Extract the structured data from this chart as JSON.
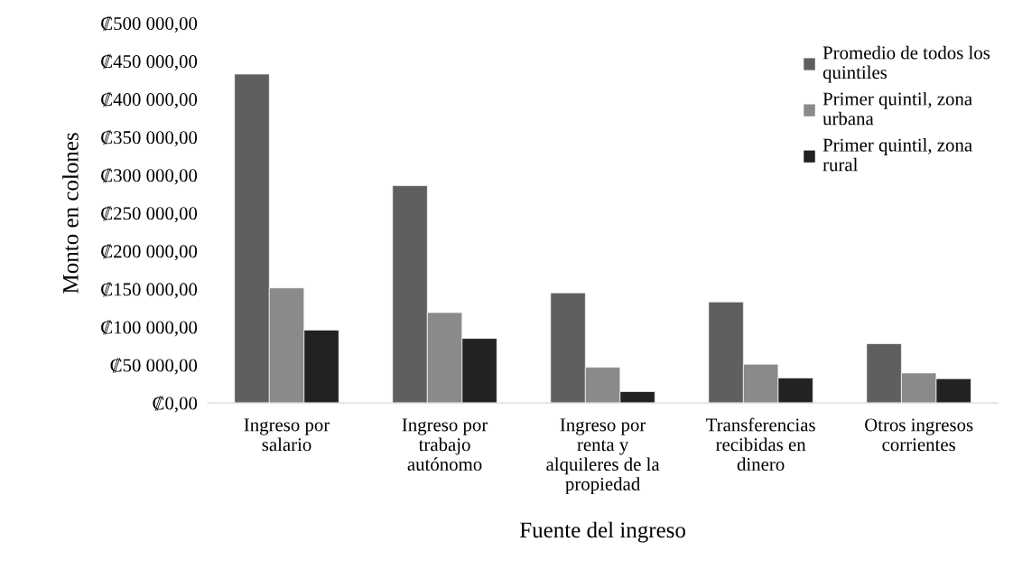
{
  "chart_data": {
    "type": "bar",
    "xlabel": "Fuente del ingreso",
    "ylabel": "Monto en colones",
    "categories": [
      "Ingreso por\nsalario",
      "Ingreso por\ntrabajo\nautónomo",
      "Ingreso por\nrenta y\nalquileres de la\npropiedad",
      "Transferencias\nrecibidas en\ndinero",
      "Otros ingresos\ncorrientes"
    ],
    "series": [
      {
        "name": "Promedio de todos los\nquintiles",
        "color": "#5f5f5f",
        "values": [
          433000,
          286000,
          145000,
          133000,
          78000
        ]
      },
      {
        "name": "Primer quintil, zona\nurbana",
        "color": "#8a8a8a",
        "values": [
          151500,
          119000,
          47000,
          51000,
          39500
        ]
      },
      {
        "name": "Primer quintil, zona\nrural",
        "color": "#222222",
        "values": [
          96000,
          85000,
          15000,
          33000,
          32000
        ]
      }
    ],
    "ylim": [
      0,
      500000
    ],
    "yticks": [
      {
        "value": 0,
        "label": "₡0,00"
      },
      {
        "value": 50000,
        "label": "₡50 000,00"
      },
      {
        "value": 100000,
        "label": "₡100 000,00"
      },
      {
        "value": 150000,
        "label": "₡150 000,00"
      },
      {
        "value": 200000,
        "label": "₡200 000,00"
      },
      {
        "value": 250000,
        "label": "₡250 000,00"
      },
      {
        "value": 300000,
        "label": "₡300 000,00"
      },
      {
        "value": 350000,
        "label": "₡350 000,00"
      },
      {
        "value": 400000,
        "label": "₡400 000,00"
      },
      {
        "value": 450000,
        "label": "₡450 000,00"
      },
      {
        "value": 500000,
        "label": "₡500 000,00"
      }
    ],
    "grid": false,
    "legend": "top right"
  }
}
